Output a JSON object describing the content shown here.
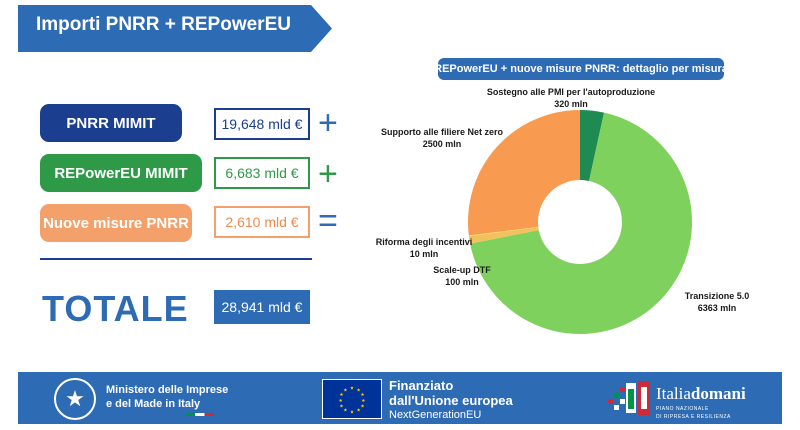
{
  "header": {
    "title": "Importi PNRR + REPowerEU"
  },
  "rows": [
    {
      "label": "PNRR MIMIT",
      "amount": "19,648 mld €",
      "operator": "+",
      "color": "#1b3e8e"
    },
    {
      "label": "REPowerEU MIMIT",
      "amount": "6,683 mld €",
      "operator": "+",
      "color": "#2e9a47"
    },
    {
      "label": "Nuove misure PNRR",
      "amount": "2,610 mld €",
      "operator": "=",
      "color": "#f4a06a"
    }
  ],
  "total": {
    "label": "TOTALE",
    "amount": "28,941 mld €"
  },
  "chart_data": {
    "type": "pie",
    "title": "REPowerEU + nuove misure PNRR: dettaglio per misura",
    "slices": [
      {
        "name": "Sostegno alle PMI per l'autoproduzione",
        "value": 320,
        "value_label": "320 mln",
        "color": "#1f8a52"
      },
      {
        "name": "Transizione 5.0",
        "value": 6363,
        "value_label": "6363 mln",
        "color": "#7fd15d"
      },
      {
        "name": "Scale-up DTF",
        "value": 100,
        "value_label": "100 mln",
        "color": "#f2c15a"
      },
      {
        "name": "Riforma degli incentivi",
        "value": 10,
        "value_label": "10 mln",
        "color": "#f8d77c"
      },
      {
        "name": "Supporto alle filiere Net zero",
        "value": 2500,
        "value_label": "2500 mln",
        "color": "#f89a4f"
      }
    ]
  },
  "footer": {
    "ministry_line1": "Ministero delle Imprese",
    "ministry_line2": "e del Made in Italy",
    "eu_line1": "Finanziato",
    "eu_line2": "dall'Unione europea",
    "eu_line3": "NextGenerationEU",
    "italia_brand_a": "Italia",
    "italia_brand_b": "domani",
    "italia_sub1": "PIANO NAZIONALE",
    "italia_sub2": "DI RIPRESA E RESILIENZA"
  }
}
